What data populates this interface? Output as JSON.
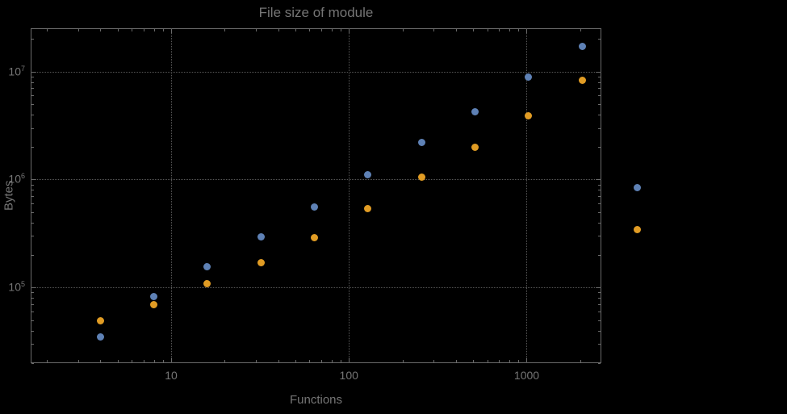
{
  "chart": {
    "title": "File size of module",
    "xlabel": "Functions",
    "ylabel": "Bytes"
  },
  "chart_data": {
    "type": "scatter",
    "title": "File size of module",
    "xlabel": "Functions",
    "ylabel": "Bytes",
    "x_scale": "log",
    "y_scale": "log",
    "grid": "dotted",
    "x": [
      4,
      8,
      16,
      32,
      64,
      128,
      256,
      512,
      1024,
      2048
    ],
    "series": [
      {
        "name": "series-blue",
        "color": "#5E81B5",
        "values": [
          35000,
          83000,
          155000,
          295000,
          560000,
          1100000,
          2200000,
          4200000,
          8800000,
          17000000
        ]
      },
      {
        "name": "series-orange",
        "color": "#E19C24",
        "values": [
          49000,
          69000,
          108000,
          170000,
          290000,
          540000,
          1050000,
          2000000,
          3900000,
          8300000
        ]
      }
    ],
    "x_ticks": [
      10,
      100,
      1000
    ],
    "x_tick_labels": [
      "10",
      "100",
      "1000"
    ],
    "y_ticks": [
      100000,
      1000000,
      10000000
    ],
    "y_tick_labels": [
      {
        "base": "10",
        "exp": "5"
      },
      {
        "base": "10",
        "exp": "6"
      },
      {
        "base": "10",
        "exp": "7"
      }
    ],
    "x_log_range": [
      0.21,
      3.42
    ],
    "y_log_range": [
      4.3,
      7.4
    ],
    "grid_color": "#585858",
    "frame_color": "#6a6a6a",
    "text_color": "#757575",
    "legend": "unlabeled color markers at right"
  }
}
